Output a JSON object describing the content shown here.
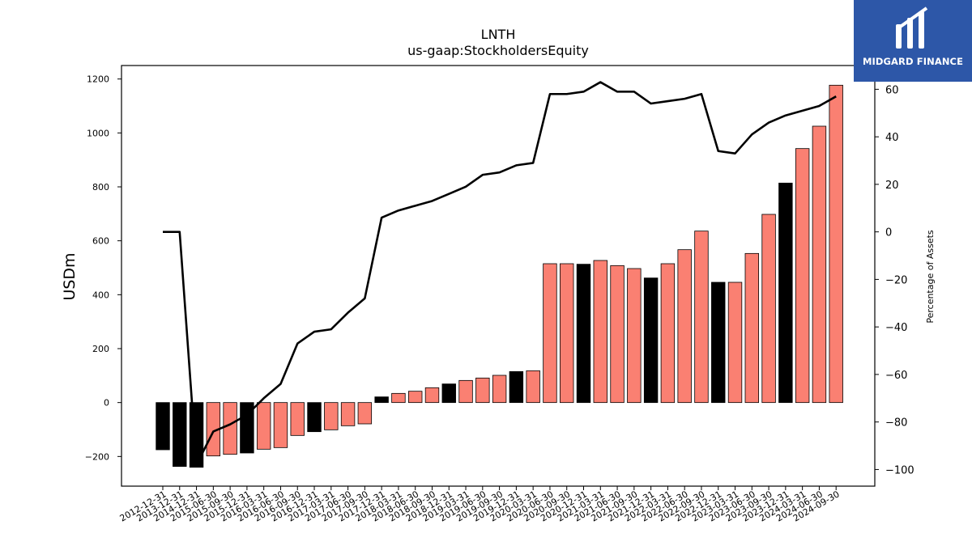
{
  "chart_data": {
    "type": "bar",
    "title": "LNTH",
    "subtitle": "us-gaap:StockholdersEquity",
    "ylabel": "USDm",
    "y2label": "Percentage of Assets",
    "ylim": [
      -310,
      1250
    ],
    "y2lim": [
      -107,
      70
    ],
    "yticks": [
      -200,
      0,
      200,
      400,
      600,
      800,
      1000,
      1200
    ],
    "y2ticks": [
      -100,
      -80,
      -60,
      -40,
      -20,
      0,
      20,
      40,
      60
    ],
    "categories": [
      "2012-12-31",
      "2013-12-31",
      "2014-12-31",
      "2015-06-30",
      "2015-09-30",
      "2015-12-31",
      "2016-03-31",
      "2016-06-30",
      "2016-09-30",
      "2016-12-31",
      "2017-03-31",
      "2017-06-30",
      "2017-09-30",
      "2017-12-31",
      "2018-03-31",
      "2018-06-30",
      "2018-09-30",
      "2018-12-31",
      "2019-03-31",
      "2019-06-30",
      "2019-09-30",
      "2019-12-31",
      "2020-03-31",
      "2020-06-30",
      "2020-09-30",
      "2020-12-31",
      "2021-03-31",
      "2021-06-30",
      "2021-09-30",
      "2021-12-31",
      "2022-03-31",
      "2022-06-30",
      "2022-09-30",
      "2022-12-31",
      "2023-03-31",
      "2023-06-30",
      "2023-09-30",
      "2023-12-31",
      "2024-03-31",
      "2024-06-30",
      "2024-09-30"
    ],
    "series": [
      {
        "values": [
          -175,
          -237,
          -240,
          -198,
          -192,
          -187,
          -173,
          -167,
          -122,
          -108,
          -101,
          -86,
          -79,
          21,
          34,
          42,
          55,
          69,
          82,
          91,
          101,
          115,
          118,
          515,
          515,
          513,
          527,
          508,
          497,
          462,
          515,
          567,
          636,
          446,
          446,
          553,
          698,
          814,
          942,
          1025,
          1177
        ],
        "colors": [
          "#000000",
          "#000000",
          "#000000",
          "#fa8072",
          "#fa8072",
          "#000000",
          "#fa8072",
          "#fa8072",
          "#fa8072",
          "#000000",
          "#fa8072",
          "#fa8072",
          "#fa8072",
          "#000000",
          "#fa8072",
          "#fa8072",
          "#fa8072",
          "#000000",
          "#fa8072",
          "#fa8072",
          "#fa8072",
          "#000000",
          "#fa8072",
          "#fa8072",
          "#fa8072",
          "#000000",
          "#fa8072",
          "#fa8072",
          "#fa8072",
          "#000000",
          "#fa8072",
          "#fa8072",
          "#fa8072",
          "#000000",
          "#fa8072",
          "#fa8072",
          "#fa8072",
          "#000000",
          "#fa8072",
          "#fa8072",
          "#fa8072"
        ]
      },
      {
        "type": "line",
        "axis": "right",
        "values": [
          0,
          0,
          -98,
          -84,
          -81,
          -77,
          -70,
          -64,
          -47,
          -42,
          -41,
          -34,
          -28,
          6,
          9,
          11,
          13,
          16,
          19,
          24,
          25,
          28,
          29,
          58,
          58,
          59,
          63,
          59,
          59,
          54,
          55,
          56,
          58,
          34,
          33,
          41,
          46,
          49,
          51,
          53,
          57
        ]
      }
    ],
    "colors": {
      "annual_bar": "#000000",
      "quarter_bar": "#fa8072",
      "line": "#000000"
    },
    "grid": false
  },
  "logo": {
    "text": "MIDGARD FINANCE",
    "background": "#2d57a8"
  }
}
